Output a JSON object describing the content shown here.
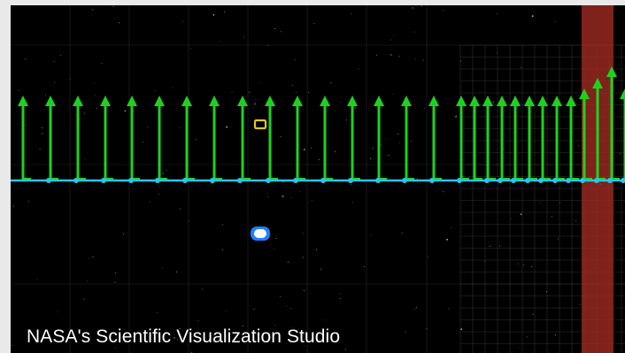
{
  "credit": "NASA's Scientific Visualization Studio",
  "scene": {
    "arrow_color": "#1fd11f",
    "baseline_color": "#29c6e8",
    "band_color": "#9e2a22",
    "grid_color": "#5a5a5a",
    "marker_yellow_color": "#e8c61a",
    "marker_blue_color": "#1e7fff",
    "marker_blue_fill": "#ffffff"
  }
}
